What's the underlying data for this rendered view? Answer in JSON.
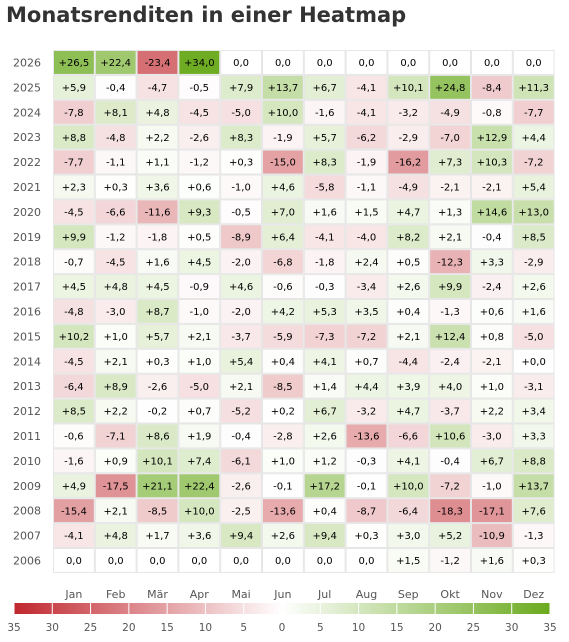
{
  "chart_data": {
    "type": "heatmap",
    "title": "Monatsrenditen in einer Heatmap",
    "x_categories": [
      "Jan",
      "Feb",
      "Mär",
      "Apr",
      "Mai",
      "Jun",
      "Jul",
      "Aug",
      "Sep",
      "Okt",
      "Nov",
      "Dez"
    ],
    "y_categories": [
      "2026",
      "2025",
      "2024",
      "2023",
      "2022",
      "2021",
      "2020",
      "2019",
      "2018",
      "2017",
      "2016",
      "2015",
      "2014",
      "2013",
      "2012",
      "2011",
      "2010",
      "2009",
      "2008",
      "2007",
      "2006"
    ],
    "values": [
      [
        "+26,5",
        "+22,4",
        "-23,4",
        "+34,0",
        "0,0",
        "0,0",
        "0,0",
        "0,0",
        "0,0",
        "0,0",
        "0,0",
        "0,0"
      ],
      [
        "+5,9",
        "-0,4",
        "-4,7",
        "-0,5",
        "+7,9",
        "+13,7",
        "+6,7",
        "-4,1",
        "+10,1",
        "+24,8",
        "-8,4",
        "+11,3"
      ],
      [
        "-7,8",
        "+8,1",
        "+4,8",
        "-4,5",
        "-5,0",
        "+10,0",
        "-1,6",
        "-4,1",
        "-3,2",
        "-4,9",
        "-0,8",
        "-7,7"
      ],
      [
        "+8,8",
        "-4,8",
        "+2,2",
        "-2,6",
        "+8,3",
        "-1,9",
        "+5,7",
        "-6,2",
        "-2,9",
        "-7,0",
        "+12,9",
        "+4,4"
      ],
      [
        "-7,7",
        "-1,1",
        "+1,1",
        "-1,2",
        "+0,3",
        "-15,0",
        "+8,3",
        "-1,9",
        "-16,2",
        "+7,3",
        "+10,3",
        "-7,2"
      ],
      [
        "+2,3",
        "+0,3",
        "+3,6",
        "+0,6",
        "-1,0",
        "+4,6",
        "-5,8",
        "-1,1",
        "-4,9",
        "-2,1",
        "-2,1",
        "+5,4"
      ],
      [
        "-4,5",
        "-6,6",
        "-11,6",
        "+9,3",
        "-0,5",
        "+7,0",
        "+1,6",
        "+1,5",
        "+4,7",
        "+1,3",
        "+14,6",
        "+13,0"
      ],
      [
        "+9,9",
        "-1,2",
        "-1,8",
        "+0,5",
        "-8,9",
        "+6,4",
        "-4,1",
        "-4,0",
        "+8,2",
        "+2,1",
        "-0,4",
        "+8,5"
      ],
      [
        "-0,7",
        "-4,5",
        "+1,6",
        "+4,5",
        "-2,0",
        "-6,8",
        "-1,8",
        "+2,4",
        "+0,5",
        "-12,3",
        "+3,3",
        "-2,9"
      ],
      [
        "+4,5",
        "+4,8",
        "+4,5",
        "-0,9",
        "+4,6",
        "-0,6",
        "-0,3",
        "-3,4",
        "+2,6",
        "+9,9",
        "-2,4",
        "+2,6"
      ],
      [
        "-4,8",
        "-3,0",
        "+8,7",
        "-1,0",
        "-2,0",
        "+4,2",
        "+5,3",
        "+3,5",
        "+0,4",
        "-1,3",
        "+0,6",
        "+1,6"
      ],
      [
        "+10,2",
        "+1,0",
        "+5,7",
        "+2,1",
        "-3,7",
        "-5,9",
        "-7,3",
        "-7,2",
        "+2,1",
        "+12,4",
        "+0,8",
        "-5,0"
      ],
      [
        "-4,5",
        "+2,1",
        "+0,3",
        "+1,0",
        "+5,4",
        "+0,4",
        "+4,1",
        "+0,7",
        "-4,4",
        "-2,4",
        "-2,1",
        "+0,0"
      ],
      [
        "-6,4",
        "+8,9",
        "-2,6",
        "-5,0",
        "+2,1",
        "-8,5",
        "+1,4",
        "+4,4",
        "+3,9",
        "+4,0",
        "+1,0",
        "-3,1"
      ],
      [
        "+8,5",
        "+2,2",
        "-0,2",
        "+0,7",
        "-5,2",
        "+0,2",
        "+6,7",
        "-3,2",
        "+4,7",
        "-3,7",
        "+2,2",
        "+3,4"
      ],
      [
        "-0,6",
        "-7,1",
        "+8,6",
        "+1,9",
        "-0,4",
        "-2,8",
        "+2,6",
        "-13,6",
        "-6,6",
        "+10,6",
        "-3,0",
        "+3,3"
      ],
      [
        "-1,6",
        "+0,9",
        "+10,1",
        "+7,4",
        "-6,1",
        "+1,0",
        "+1,2",
        "-0,3",
        "+4,1",
        "-0,4",
        "+6,7",
        "+8,8"
      ],
      [
        "+4,9",
        "-17,5",
        "+21,1",
        "+22,4",
        "-2,6",
        "-0,1",
        "+17,2",
        "-0,1",
        "+10,0",
        "-7,2",
        "-1,0",
        "+13,7"
      ],
      [
        "-15,4",
        "+2,1",
        "-8,5",
        "+10,0",
        "-2,5",
        "-13,6",
        "+0,4",
        "-8,7",
        "-6,4",
        "-18,3",
        "-17,1",
        "+7,6"
      ],
      [
        "-4,1",
        "+4,8",
        "+1,7",
        "+3,6",
        "+9,4",
        "+2,6",
        "+9,4",
        "+0,3",
        "+3,0",
        "+5,2",
        "-10,9",
        "-1,3"
      ],
      [
        "0,0",
        "0,0",
        "0,0",
        "0,0",
        "0,0",
        "0,0",
        "0,0",
        "0,0",
        "+1,5",
        "-1,2",
        "+1,6",
        "+0,3"
      ]
    ],
    "color_scale": {
      "min": -35,
      "max": 35,
      "negative_color": "#c0272d",
      "neutral_color": "#ffffff",
      "positive_color": "#6aaa1e",
      "ticks": [
        "35",
        "30",
        "25",
        "20",
        "15",
        "10",
        "5",
        "0",
        "5",
        "10",
        "15",
        "20",
        "25",
        "30",
        "35"
      ]
    },
    "legend_placement": "bottom"
  }
}
